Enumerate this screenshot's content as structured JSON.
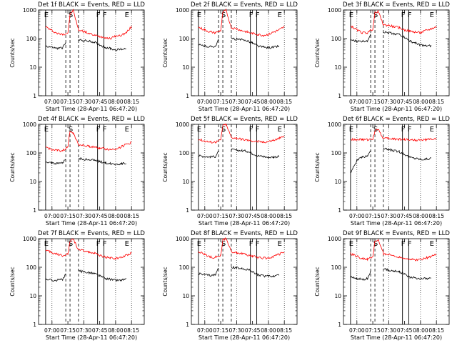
{
  "common": {
    "xlabel": "Start Time (28-Apr-11 06:47:20)",
    "ylabel": "Counts/sec",
    "x_tick_labels": [
      "07:00",
      "07:15",
      "07:30",
      "07:45",
      "08:00",
      "08:15"
    ],
    "y_tick_labels": [
      "1",
      "10",
      "100",
      "1000"
    ],
    "y_scale": "log",
    "ylim": [
      1,
      1000
    ],
    "colors": {
      "events": "#000000",
      "lld": "#ff0000"
    },
    "markers": [
      {
        "label": "E",
        "x": "06:54",
        "style": "solid"
      },
      {
        "label": "S",
        "x": "07:17",
        "style": "dashed"
      },
      {
        "label": "F",
        "x": "07:43",
        "style": "solid"
      },
      {
        "label": "F",
        "x": "07:49",
        "style": "solid"
      },
      {
        "label": "E",
        "x": "08:10",
        "style": "none"
      }
    ],
    "gap_lines": [
      {
        "x": "07:13",
        "style": "dashed"
      },
      {
        "x": "07:25",
        "style": "dashed"
      }
    ],
    "vertical_gridlines": [
      "07:00",
      "07:30",
      "08:00",
      "08:15"
    ]
  },
  "chart_data": [
    {
      "type": "line",
      "title": "Det 1f BLACK = Events, RED = LLD",
      "grid": "vertical dotted",
      "series": [
        {
          "color": "red",
          "x": [
            "06:54",
            "07:00",
            "07:05",
            "07:10",
            "07:15",
            "07:17",
            "07:20",
            "07:25",
            "07:30",
            "07:35",
            "07:40",
            "07:45",
            "07:50",
            "07:55",
            "08:00",
            "08:05",
            "08:10",
            "08:15"
          ],
          "y": [
            260,
            190,
            150,
            140,
            160,
            700,
            1000,
            200,
            180,
            150,
            130,
            120,
            110,
            100,
            120,
            130,
            160,
            260
          ]
        },
        {
          "color": "black",
          "x": [
            "06:54",
            "07:00",
            "07:05",
            "07:10",
            "07:13",
            "07:25",
            "07:30",
            "07:35",
            "07:40",
            "07:45",
            "07:50",
            "07:55",
            "08:00",
            "08:05",
            "08:10"
          ],
          "y": [
            55,
            50,
            45,
            48,
            70,
            90,
            85,
            80,
            75,
            60,
            50,
            45,
            40,
            42,
            45
          ]
        }
      ]
    },
    {
      "type": "line",
      "title": "Det 2f BLACK = Events, RED = LLD",
      "grid": "vertical dotted",
      "series": [
        {
          "color": "red",
          "x": [
            "06:54",
            "07:00",
            "07:05",
            "07:10",
            "07:15",
            "07:17",
            "07:20",
            "07:25",
            "07:30",
            "07:35",
            "07:40",
            "07:45",
            "07:50",
            "07:55",
            "08:00",
            "08:05",
            "08:10",
            "08:15"
          ],
          "y": [
            250,
            200,
            170,
            160,
            190,
            800,
            1000,
            240,
            220,
            190,
            170,
            150,
            140,
            130,
            140,
            170,
            200,
            260
          ]
        },
        {
          "color": "black",
          "x": [
            "06:54",
            "07:00",
            "07:05",
            "07:10",
            "07:13",
            "07:25",
            "07:30",
            "07:35",
            "07:40",
            "07:45",
            "07:50",
            "07:55",
            "08:00",
            "08:05",
            "08:10"
          ],
          "y": [
            60,
            55,
            52,
            55,
            90,
            100,
            95,
            90,
            85,
            70,
            55,
            50,
            48,
            50,
            55
          ]
        }
      ]
    },
    {
      "type": "line",
      "title": "Det 3f BLACK = Events, RED = LLD",
      "grid": "vertical dotted",
      "series": [
        {
          "color": "red",
          "x": [
            "06:54",
            "07:00",
            "07:05",
            "07:10",
            "07:15",
            "07:17",
            "07:20",
            "07:25",
            "07:30",
            "07:35",
            "07:40",
            "07:45",
            "07:50",
            "07:55",
            "08:00",
            "08:05",
            "08:10",
            "08:15"
          ],
          "y": [
            280,
            200,
            160,
            160,
            220,
            800,
            900,
            300,
            290,
            260,
            240,
            200,
            180,
            170,
            160,
            190,
            220,
            260
          ]
        },
        {
          "color": "black",
          "x": [
            "06:54",
            "07:00",
            "07:05",
            "07:10",
            "07:13",
            "07:25",
            "07:30",
            "07:35",
            "07:40",
            "07:45",
            "07:50",
            "07:55",
            "08:00",
            "08:05",
            "08:10"
          ],
          "y": [
            90,
            80,
            80,
            85,
            150,
            170,
            160,
            150,
            140,
            110,
            80,
            70,
            60,
            55,
            55
          ]
        }
      ]
    },
    {
      "type": "line",
      "title": "Det 4f BLACK = Events, RED = LLD",
      "grid": "vertical dotted",
      "series": [
        {
          "color": "red",
          "x": [
            "06:54",
            "07:00",
            "07:05",
            "07:10",
            "07:15",
            "07:17",
            "07:20",
            "07:25",
            "07:30",
            "07:35",
            "07:40",
            "07:45",
            "07:50",
            "07:55",
            "08:00",
            "08:05",
            "08:10",
            "08:15"
          ],
          "y": [
            160,
            130,
            120,
            120,
            160,
            600,
            500,
            200,
            180,
            170,
            160,
            150,
            140,
            130,
            140,
            160,
            200,
            230
          ]
        },
        {
          "color": "black",
          "x": [
            "06:54",
            "07:00",
            "07:05",
            "07:10",
            "07:13",
            "07:25",
            "07:30",
            "07:35",
            "07:40",
            "07:45",
            "07:50",
            "07:55",
            "08:00",
            "08:05",
            "08:10"
          ],
          "y": [
            50,
            45,
            42,
            45,
            60,
            65,
            60,
            58,
            55,
            50,
            45,
            42,
            40,
            42,
            45
          ]
        }
      ]
    },
    {
      "type": "line",
      "title": "Det 5f BLACK = Events, RED = LLD",
      "grid": "vertical dotted",
      "series": [
        {
          "color": "red",
          "x": [
            "06:54",
            "07:00",
            "07:05",
            "07:10",
            "07:15",
            "07:17",
            "07:20",
            "07:25",
            "07:30",
            "07:35",
            "07:40",
            "07:45",
            "07:50",
            "07:55",
            "08:00",
            "08:05",
            "08:10",
            "08:15"
          ],
          "y": [
            300,
            260,
            240,
            240,
            280,
            900,
            1000,
            350,
            330,
            300,
            280,
            260,
            250,
            240,
            250,
            280,
            320,
            380
          ]
        },
        {
          "color": "black",
          "x": [
            "06:54",
            "07:00",
            "07:05",
            "07:10",
            "07:13",
            "07:25",
            "07:30",
            "07:35",
            "07:40",
            "07:45",
            "07:50",
            "07:55",
            "08:00",
            "08:05",
            "08:10"
          ],
          "y": [
            80,
            75,
            72,
            75,
            110,
            130,
            125,
            120,
            115,
            95,
            80,
            75,
            70,
            72,
            75
          ]
        }
      ]
    },
    {
      "type": "line",
      "title": "Det 6f BLACK = Events, RED = LLD",
      "grid": "vertical dotted",
      "series": [
        {
          "color": "red",
          "x": [
            "06:54",
            "07:00",
            "07:05",
            "07:10",
            "07:15",
            "07:17",
            "07:20",
            "07:25",
            "07:30",
            "07:35",
            "07:40",
            "07:45",
            "07:50",
            "07:55",
            "08:00",
            "08:05",
            "08:10",
            "08:15"
          ],
          "y": [
            300,
            300,
            290,
            290,
            300,
            600,
            700,
            320,
            320,
            310,
            300,
            300,
            290,
            280,
            280,
            290,
            300,
            320
          ]
        },
        {
          "color": "black",
          "x": [
            "06:54",
            "07:00",
            "07:05",
            "07:10",
            "07:13",
            "07:25",
            "07:30",
            "07:35",
            "07:40",
            "07:45",
            "07:50",
            "07:55",
            "08:00",
            "08:05",
            "08:10"
          ],
          "y": [
            20,
            55,
            70,
            80,
            130,
            140,
            130,
            120,
            110,
            90,
            70,
            65,
            60,
            60,
            65
          ]
        }
      ]
    },
    {
      "type": "line",
      "title": "Det 7f BLACK = Events, RED = LLD",
      "grid": "vertical dotted",
      "series": [
        {
          "color": "red",
          "x": [
            "06:54",
            "07:00",
            "07:05",
            "07:10",
            "07:15",
            "07:17",
            "07:20",
            "07:25",
            "07:30",
            "07:35",
            "07:40",
            "07:45",
            "07:50",
            "07:55",
            "08:00",
            "08:05",
            "08:10",
            "08:15"
          ],
          "y": [
            400,
            330,
            280,
            260,
            300,
            800,
            1000,
            400,
            380,
            340,
            300,
            260,
            230,
            210,
            200,
            220,
            260,
            320
          ]
        },
        {
          "color": "black",
          "x": [
            "06:54",
            "07:00",
            "07:05",
            "07:10",
            "07:13",
            "07:25",
            "07:30",
            "07:35",
            "07:40",
            "07:45",
            "07:50",
            "07:55",
            "08:00",
            "08:05",
            "08:10"
          ],
          "y": [
            40,
            35,
            35,
            38,
            60,
            75,
            70,
            65,
            60,
            50,
            40,
            38,
            35,
            35,
            38
          ]
        }
      ]
    },
    {
      "type": "line",
      "title": "Det 8f BLACK = Events, RED = LLD",
      "grid": "vertical dotted",
      "series": [
        {
          "color": "red",
          "x": [
            "06:54",
            "07:00",
            "07:05",
            "07:10",
            "07:15",
            "07:17",
            "07:20",
            "07:25",
            "07:30",
            "07:35",
            "07:40",
            "07:45",
            "07:50",
            "07:55",
            "08:00",
            "08:05",
            "08:10",
            "08:15"
          ],
          "y": [
            350,
            280,
            230,
            220,
            260,
            900,
            1000,
            350,
            330,
            300,
            270,
            240,
            220,
            210,
            210,
            240,
            280,
            340
          ]
        },
        {
          "color": "black",
          "x": [
            "06:54",
            "07:00",
            "07:05",
            "07:10",
            "07:13",
            "07:25",
            "07:30",
            "07:35",
            "07:40",
            "07:45",
            "07:50",
            "07:55",
            "08:00",
            "08:05",
            "08:10"
          ],
          "y": [
            60,
            55,
            52,
            55,
            90,
            100,
            95,
            90,
            85,
            70,
            55,
            50,
            48,
            50,
            55
          ]
        }
      ]
    },
    {
      "type": "line",
      "title": "Det 9f BLACK = Events, RED = LLD",
      "grid": "vertical dotted",
      "series": [
        {
          "color": "red",
          "x": [
            "06:54",
            "07:00",
            "07:05",
            "07:10",
            "07:15",
            "07:17",
            "07:20",
            "07:25",
            "07:30",
            "07:35",
            "07:40",
            "07:45",
            "07:50",
            "07:55",
            "08:00",
            "08:05",
            "08:10",
            "08:15"
          ],
          "y": [
            300,
            240,
            200,
            190,
            230,
            800,
            900,
            300,
            280,
            250,
            230,
            210,
            190,
            180,
            190,
            210,
            240,
            290
          ]
        },
        {
          "color": "black",
          "x": [
            "06:54",
            "07:00",
            "07:05",
            "07:10",
            "07:13",
            "07:25",
            "07:30",
            "07:35",
            "07:40",
            "07:45",
            "07:50",
            "07:55",
            "08:00",
            "08:05",
            "08:10"
          ],
          "y": [
            45,
            40,
            38,
            40,
            70,
            85,
            80,
            75,
            70,
            58,
            45,
            42,
            40,
            40,
            42
          ]
        }
      ]
    }
  ]
}
